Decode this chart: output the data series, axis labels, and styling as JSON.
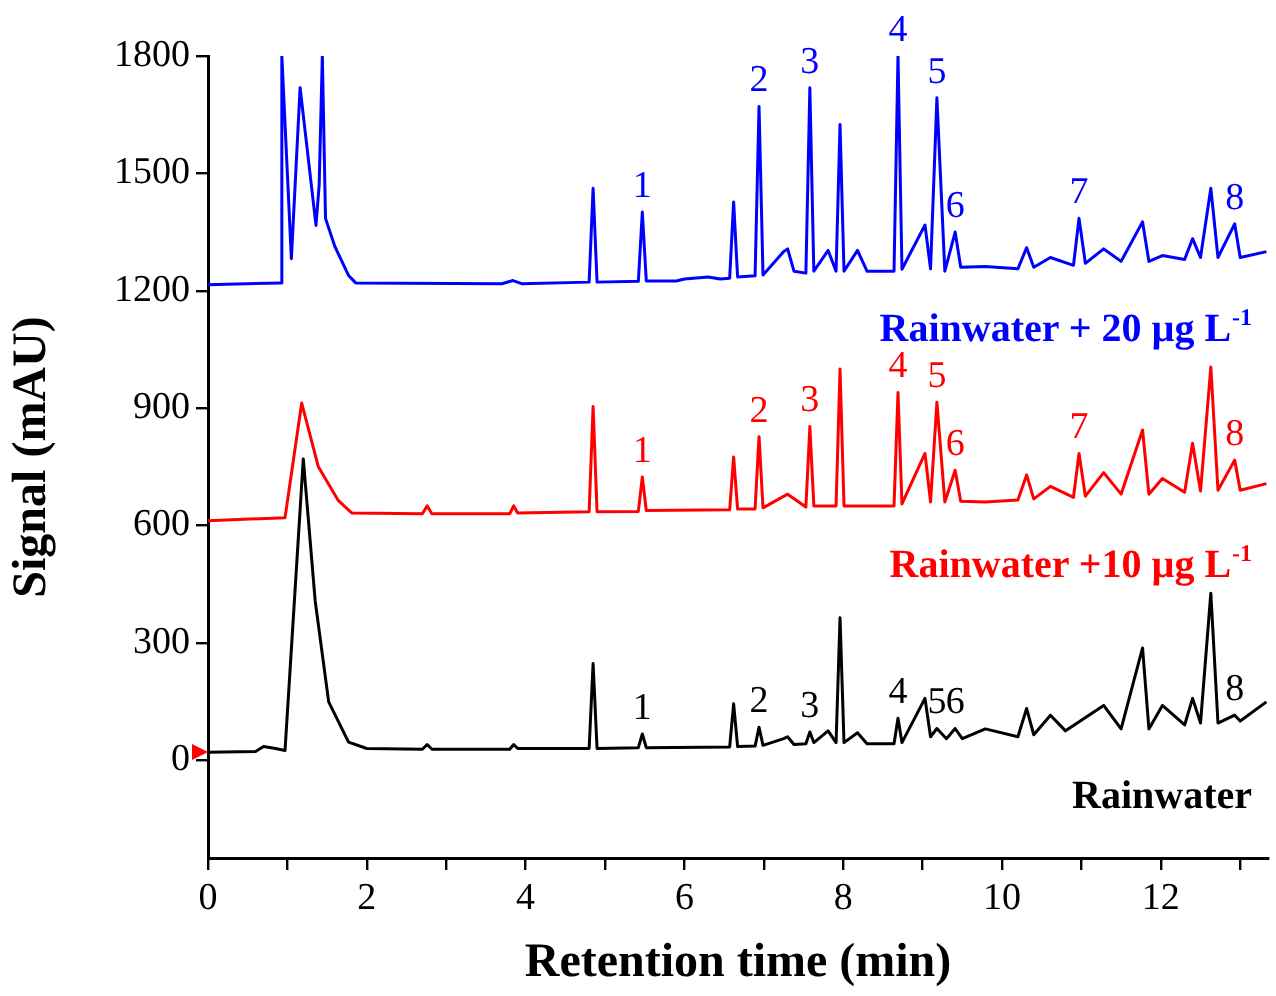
{
  "chart_data": {
    "type": "line",
    "xlabel": "Retention time (min)",
    "ylabel": "Signal (mAU)",
    "xlim": [
      0,
      13.35
    ],
    "xticks": [
      0,
      {
        "value": 1,
        "label": null
      },
      2,
      {
        "value": 3,
        "label": null
      },
      4,
      {
        "value": 5,
        "label": null
      },
      6,
      {
        "value": 7,
        "label": null
      },
      8,
      {
        "value": 9,
        "label": null
      },
      10,
      {
        "value": 11,
        "label": null
      },
      12,
      {
        "value": 13,
        "label": null
      }
    ],
    "ylim": [
      -250,
      1800
    ],
    "yticks": [
      0,
      300,
      600,
      900,
      1200,
      1500,
      1800
    ],
    "grid": false,
    "legend": false,
    "marker": "none",
    "line_style": "solid",
    "series": [
      {
        "name": "Rainwater + 20 µg L$^{-1}$",
        "color": "#0000ff",
        "x": [
          0,
          0.91,
          0.93,
          1.05,
          1.16,
          1.36,
          1.4,
          1.44,
          1.48,
          1.6,
          1.77,
          1.86,
          3.7,
          3.84,
          3.95,
          4.8,
          4.85,
          4.9,
          5.42,
          5.47,
          5.52,
          5.9,
          6.0,
          6.3,
          6.45,
          6.57,
          6.62,
          6.67,
          6.89,
          6.94,
          6.99,
          7.25,
          7.3,
          7.38,
          7.53,
          7.58,
          7.63,
          7.81,
          7.91,
          7.96,
          8.01,
          8.18,
          8.3,
          8.64,
          8.69,
          8.74,
          9.03,
          9.1,
          9.18,
          9.28,
          9.41,
          9.48,
          9.79,
          10.2,
          10.31,
          10.4,
          10.61,
          10.9,
          10.97,
          11.05,
          11.28,
          11.5,
          11.77,
          11.85,
          12.02,
          12.3,
          12.4,
          12.5,
          12.63,
          12.72,
          12.93,
          13.0,
          13.33
        ],
        "values": [
          1215,
          1220,
          1800,
          1282,
          1719,
          1367,
          1470,
          1800,
          1385,
          1312,
          1239,
          1220,
          1218,
          1226,
          1218,
          1222,
          1462,
          1222,
          1224,
          1401,
          1225,
          1225,
          1230,
          1235,
          1230,
          1232,
          1427,
          1235,
          1238,
          1671,
          1240,
          1300,
          1307,
          1250,
          1245,
          1719,
          1250,
          1303,
          1250,
          1625,
          1250,
          1303,
          1250,
          1250,
          1800,
          1255,
          1368,
          1256,
          1693,
          1250,
          1350,
          1260,
          1262,
          1256,
          1310,
          1260,
          1285,
          1265,
          1385,
          1270,
          1307,
          1275,
          1376,
          1275,
          1290,
          1280,
          1333,
          1285,
          1462,
          1285,
          1371,
          1285,
          1300
        ]
      },
      {
        "name": "Rainwater +10 µg L$^{-1}$",
        "color": "#ff0000",
        "x": [
          0,
          0.97,
          1.18,
          1.39,
          1.64,
          1.81,
          2.7,
          2.76,
          2.82,
          3.8,
          3.85,
          3.9,
          4.8,
          4.85,
          4.9,
          5.42,
          5.47,
          5.52,
          6.57,
          6.62,
          6.67,
          6.89,
          6.94,
          6.99,
          7.3,
          7.53,
          7.58,
          7.63,
          7.91,
          7.96,
          8.01,
          8.64,
          8.69,
          8.74,
          9.03,
          9.1,
          9.18,
          9.28,
          9.41,
          9.48,
          9.79,
          10.2,
          10.31,
          10.4,
          10.61,
          10.9,
          10.97,
          11.05,
          11.28,
          11.5,
          11.77,
          11.85,
          12.02,
          12.3,
          12.4,
          12.5,
          12.63,
          12.72,
          12.93,
          13.0,
          13.33
        ],
        "values": [
          612,
          620,
          913,
          750,
          664,
          632,
          630,
          650,
          630,
          630,
          650,
          632,
          635,
          904,
          635,
          636,
          724,
          638,
          640,
          775,
          642,
          642,
          827,
          645,
          680,
          647,
          853,
          650,
          650,
          1000,
          650,
          650,
          940,
          655,
          784,
          660,
          915,
          660,
          741,
          662,
          660,
          665,
          729,
          668,
          700,
          672,
          784,
          675,
          735,
          680,
          844,
          680,
          720,
          685,
          810,
          688,
          1005,
          690,
          767,
          690,
          707
        ]
      },
      {
        "name": "Rainwater",
        "color": "#000000",
        "x": [
          0,
          0.6,
          0.7,
          0.85,
          0.97,
          1.2,
          1.35,
          1.52,
          1.77,
          2.0,
          2.7,
          2.76,
          2.82,
          3.8,
          3.85,
          3.9,
          4.8,
          4.85,
          4.9,
          5.42,
          5.47,
          5.52,
          6.57,
          6.62,
          6.67,
          6.89,
          6.94,
          6.99,
          7.25,
          7.3,
          7.38,
          7.53,
          7.58,
          7.63,
          7.81,
          7.91,
          7.96,
          8.01,
          8.18,
          8.3,
          8.64,
          8.69,
          8.74,
          9.03,
          9.1,
          9.18,
          9.3,
          9.41,
          9.5,
          9.79,
          10.2,
          10.31,
          10.4,
          10.61,
          10.8,
          11.28,
          11.5,
          11.77,
          11.85,
          12.02,
          12.3,
          12.4,
          12.5,
          12.63,
          12.72,
          12.93,
          13.0,
          13.33
        ],
        "values": [
          20,
          22,
          35,
          30,
          25,
          770,
          407,
          149,
          46,
          30,
          28,
          40,
          28,
          28,
          40,
          30,
          30,
          247,
          30,
          32,
          67,
          32,
          34,
          144,
          35,
          36,
          84,
          38,
          55,
          60,
          40,
          42,
          72,
          45,
          75,
          45,
          364,
          45,
          70,
          42,
          42,
          107,
          45,
          158,
          60,
          81,
          55,
          81,
          55,
          80,
          60,
          132,
          65,
          115,
          75,
          140,
          80,
          287,
          80,
          140,
          90,
          158,
          95,
          427,
          95,
          115,
          100,
          149
        ]
      }
    ],
    "annotations": [
      {
        "text": "1",
        "x": 5.47,
        "y": 1401
      },
      {
        "text": "2",
        "x": 6.94,
        "y": 1671
      },
      {
        "text": "3",
        "x": 7.58,
        "y": 1719
      },
      {
        "text": "4",
        "x": 8.69,
        "y": 1800
      },
      {
        "text": "5",
        "x": 9.18,
        "y": 1693
      },
      {
        "text": "6",
        "x": 9.41,
        "y": 1350
      },
      {
        "text": "7",
        "x": 10.97,
        "y": 1385
      },
      {
        "text": "8",
        "x": 12.93,
        "y": 1371
      },
      {
        "text": "1",
        "x": 5.47,
        "y": 724
      },
      {
        "text": "2",
        "x": 6.94,
        "y": 827
      },
      {
        "text": "3",
        "x": 7.58,
        "y": 853
      },
      {
        "text": "4",
        "x": 8.69,
        "y": 940
      },
      {
        "text": "5",
        "x": 9.18,
        "y": 915
      },
      {
        "text": "6",
        "x": 9.41,
        "y": 741
      },
      {
        "text": "7",
        "x": 10.97,
        "y": 784
      },
      {
        "text": "8",
        "x": 12.93,
        "y": 767
      },
      {
        "text": "1",
        "x": 5.47,
        "y": 67
      },
      {
        "text": "2",
        "x": 6.94,
        "y": 84
      },
      {
        "text": "3",
        "x": 7.58,
        "y": 72
      },
      {
        "text": "4",
        "x": 8.69,
        "y": 107
      },
      {
        "text": "5",
        "x": 9.18,
        "y": 81
      },
      {
        "text": "6",
        "x": 9.41,
        "y": 81
      },
      {
        "text": "8",
        "x": 12.93,
        "y": 115
      }
    ]
  }
}
